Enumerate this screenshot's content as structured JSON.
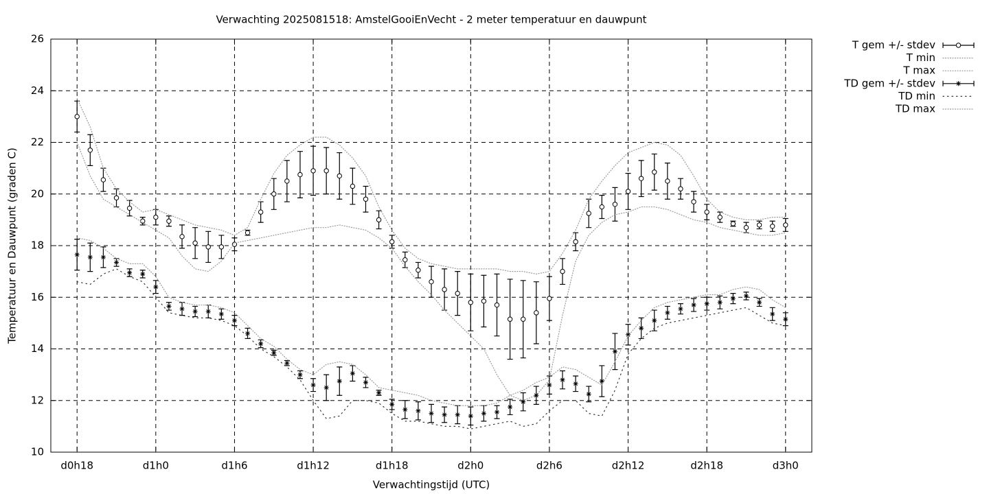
{
  "chart_data": {
    "type": "errorbar-line",
    "title": "Verwachting 2025081518: AmstelGooiEnVecht - 2 meter temperatuur en dauwpunt",
    "xlabel": "Verwachtingstijd (UTC)",
    "ylabel": "Temperatuur en Dauwpunt (graden C)",
    "x": [
      18,
      19,
      20,
      21,
      22,
      23,
      24,
      25,
      26,
      27,
      28,
      29,
      30,
      31,
      32,
      33,
      34,
      35,
      36,
      37,
      38,
      39,
      40,
      41,
      42,
      43,
      44,
      45,
      46,
      47,
      48,
      49,
      50,
      51,
      52,
      53,
      54,
      55,
      56,
      57,
      58,
      59,
      60,
      61,
      62,
      63,
      64,
      65,
      66,
      67,
      68,
      69,
      70,
      71,
      72
    ],
    "xlim": [
      16,
      74
    ],
    "xticks": [
      {
        "value": 18,
        "label": "d0h18"
      },
      {
        "value": 24,
        "label": "d1h0"
      },
      {
        "value": 30,
        "label": "d1h6"
      },
      {
        "value": 36,
        "label": "d1h12"
      },
      {
        "value": 42,
        "label": "d1h18"
      },
      {
        "value": 48,
        "label": "d2h0"
      },
      {
        "value": 54,
        "label": "d2h6"
      },
      {
        "value": 60,
        "label": "d2h12"
      },
      {
        "value": 66,
        "label": "d2h18"
      },
      {
        "value": 72,
        "label": "d3h0"
      }
    ],
    "ylim": [
      10,
      26
    ],
    "yticks": [
      10,
      12,
      14,
      16,
      18,
      20,
      22,
      24,
      26
    ],
    "grid": true,
    "legend": "outside-right",
    "series": [
      {
        "name": "T gem +/- stdev",
        "style": "errorbars",
        "marker": "circle",
        "color": "#000000",
        "values": [
          23.0,
          21.7,
          20.55,
          19.85,
          19.45,
          18.95,
          19.1,
          18.95,
          18.35,
          18.1,
          17.95,
          17.95,
          18.05,
          18.5,
          19.3,
          20.0,
          20.5,
          20.75,
          20.9,
          20.9,
          20.7,
          20.3,
          19.8,
          19.0,
          18.15,
          17.45,
          17.05,
          16.6,
          16.3,
          16.15,
          15.8,
          15.85,
          15.7,
          15.15,
          15.15,
          15.4,
          15.95,
          17.0,
          18.15,
          19.25,
          19.5,
          19.6,
          20.1,
          20.6,
          20.85,
          20.5,
          20.2,
          19.7,
          19.3,
          19.1,
          18.85,
          18.7,
          18.8,
          18.75,
          18.8
        ],
        "errors": [
          0.6,
          0.6,
          0.45,
          0.35,
          0.3,
          0.15,
          0.3,
          0.2,
          0.45,
          0.6,
          0.6,
          0.45,
          0.25,
          0.1,
          0.4,
          0.6,
          0.8,
          0.9,
          0.95,
          0.9,
          0.9,
          0.7,
          0.5,
          0.35,
          0.25,
          0.3,
          0.3,
          0.6,
          0.8,
          0.85,
          1.1,
          1.0,
          1.2,
          1.55,
          1.5,
          1.2,
          0.85,
          0.5,
          0.35,
          0.55,
          0.45,
          0.65,
          0.7,
          0.7,
          0.7,
          0.7,
          0.4,
          0.4,
          0.3,
          0.2,
          0.1,
          0.2,
          0.15,
          0.2,
          0.25
        ]
      },
      {
        "name": "T min",
        "style": "dotted",
        "color": "#999999",
        "values": [
          22.0,
          20.7,
          19.8,
          19.5,
          19.2,
          18.9,
          18.6,
          18.3,
          17.6,
          17.1,
          17.0,
          17.4,
          18.1,
          18.2,
          18.3,
          18.4,
          18.5,
          18.6,
          18.7,
          18.7,
          18.8,
          18.7,
          18.6,
          18.3,
          17.9,
          17.2,
          16.6,
          16.1,
          15.5,
          15.0,
          14.5,
          14.0,
          13.0,
          12.2,
          12.0,
          12.2,
          12.8,
          15.3,
          17.4,
          18.4,
          18.9,
          19.2,
          19.3,
          19.5,
          19.5,
          19.4,
          19.2,
          19.0,
          18.9,
          18.7,
          18.6,
          18.5,
          18.4,
          18.4,
          18.5
        ]
      },
      {
        "name": "T max",
        "style": "dotted",
        "color": "#999999",
        "values": [
          23.7,
          22.6,
          21.0,
          20.2,
          19.7,
          19.3,
          19.4,
          19.2,
          19.0,
          18.8,
          18.7,
          18.6,
          18.4,
          18.7,
          19.8,
          20.8,
          21.5,
          21.9,
          22.2,
          22.2,
          21.9,
          21.4,
          20.7,
          19.5,
          18.6,
          17.9,
          17.5,
          17.3,
          17.2,
          17.1,
          17.1,
          17.1,
          17.1,
          17.0,
          17.0,
          16.9,
          17.0,
          17.7,
          18.6,
          19.8,
          20.5,
          21.1,
          21.6,
          21.8,
          22.0,
          21.9,
          21.5,
          20.7,
          19.8,
          19.3,
          19.1,
          19.0,
          19.0,
          19.1,
          19.1
        ]
      },
      {
        "name": "TD gem +/- stdev",
        "style": "errorbars",
        "marker": "star",
        "color": "#000000",
        "values": [
          17.65,
          17.55,
          17.55,
          17.35,
          16.95,
          16.9,
          16.4,
          15.65,
          15.55,
          15.45,
          15.45,
          15.35,
          15.1,
          14.6,
          14.2,
          13.85,
          13.45,
          13.0,
          12.6,
          12.5,
          12.75,
          13.05,
          12.7,
          12.3,
          11.85,
          11.65,
          11.6,
          11.5,
          11.45,
          11.45,
          11.4,
          11.5,
          11.55,
          11.75,
          11.95,
          12.2,
          12.6,
          12.8,
          12.65,
          12.25,
          12.75,
          13.9,
          14.55,
          14.8,
          15.1,
          15.4,
          15.55,
          15.7,
          15.75,
          15.8,
          15.95,
          16.05,
          15.8,
          15.35,
          15.15
        ],
        "errors": [
          0.6,
          0.55,
          0.4,
          0.15,
          0.15,
          0.15,
          0.25,
          0.15,
          0.25,
          0.2,
          0.25,
          0.2,
          0.2,
          0.2,
          0.15,
          0.1,
          0.1,
          0.15,
          0.25,
          0.5,
          0.55,
          0.3,
          0.2,
          0.1,
          0.2,
          0.35,
          0.35,
          0.35,
          0.3,
          0.35,
          0.35,
          0.3,
          0.25,
          0.3,
          0.35,
          0.35,
          0.35,
          0.35,
          0.3,
          0.3,
          0.6,
          0.7,
          0.4,
          0.4,
          0.4,
          0.25,
          0.2,
          0.25,
          0.25,
          0.25,
          0.2,
          0.15,
          0.15,
          0.25,
          0.25
        ]
      },
      {
        "name": "TD min",
        "style": "dotted-wide",
        "color": "#333333",
        "values": [
          16.6,
          16.5,
          16.9,
          17.1,
          16.8,
          16.6,
          16.0,
          15.4,
          15.3,
          15.2,
          15.2,
          15.1,
          14.9,
          14.5,
          14.0,
          13.7,
          13.3,
          12.8,
          12.0,
          11.3,
          11.4,
          12.0,
          12.0,
          11.9,
          11.5,
          11.2,
          11.2,
          11.1,
          11.0,
          11.0,
          10.9,
          11.0,
          11.1,
          11.2,
          11.0,
          11.1,
          11.6,
          12.0,
          12.0,
          11.5,
          11.4,
          12.4,
          13.8,
          14.4,
          14.8,
          15.0,
          15.1,
          15.2,
          15.3,
          15.4,
          15.5,
          15.6,
          15.3,
          15.0,
          14.9
        ]
      },
      {
        "name": "TD max",
        "style": "dotted",
        "color": "#999999",
        "values": [
          18.3,
          18.2,
          17.9,
          17.5,
          17.3,
          17.3,
          16.8,
          16.0,
          15.8,
          15.7,
          15.7,
          15.6,
          15.4,
          14.9,
          14.4,
          14.1,
          13.6,
          13.2,
          13.0,
          13.4,
          13.5,
          13.4,
          13.0,
          12.5,
          12.4,
          12.3,
          12.2,
          12.0,
          11.9,
          11.8,
          11.8,
          11.8,
          11.9,
          12.2,
          12.4,
          12.7,
          12.9,
          13.3,
          13.2,
          12.9,
          12.6,
          13.5,
          14.5,
          15.1,
          15.6,
          15.8,
          15.9,
          16.0,
          16.1,
          16.1,
          16.3,
          16.4,
          16.3,
          15.9,
          15.6
        ]
      }
    ]
  }
}
